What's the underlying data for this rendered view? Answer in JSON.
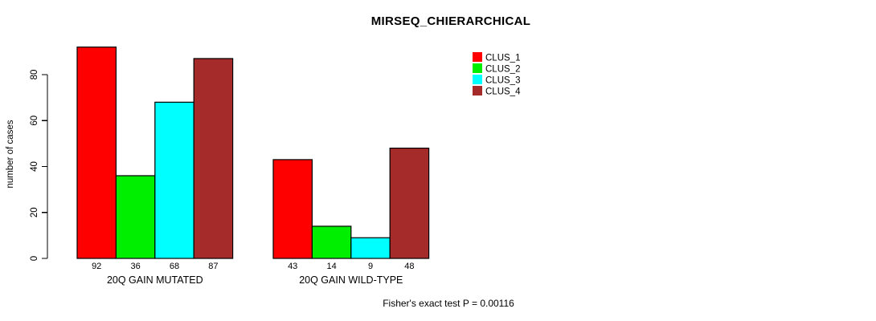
{
  "chart_data": {
    "type": "bar",
    "title": "MIRSEQ_CHIERARCHICAL",
    "ylabel": "number of cases",
    "xlabel": "",
    "categories": [
      "20Q GAIN MUTATED",
      "20Q GAIN WILD-TYPE"
    ],
    "series": [
      {
        "name": "CLUS_1",
        "color": "#FF0000",
        "values": [
          92,
          43
        ]
      },
      {
        "name": "CLUS_2",
        "color": "#00EE00",
        "values": [
          36,
          14
        ]
      },
      {
        "name": "CLUS_3",
        "color": "#00FFFF",
        "values": [
          68,
          9
        ]
      },
      {
        "name": "CLUS_4",
        "color": "#A52A2A",
        "values": [
          87,
          48
        ]
      }
    ],
    "yticks": [
      0,
      20,
      40,
      60,
      80
    ],
    "ylim": [
      0,
      92
    ],
    "grid": false,
    "legend_position": "top-right",
    "bar_value_labels": [
      [
        92,
        36,
        68,
        87
      ],
      [
        43,
        14,
        9,
        48
      ]
    ],
    "annotation": "Fisher's exact test P = 0.00116"
  },
  "colors": {
    "bar_border": "#000000",
    "axis": "#000000",
    "text": "#000000",
    "background": "#ffffff"
  }
}
